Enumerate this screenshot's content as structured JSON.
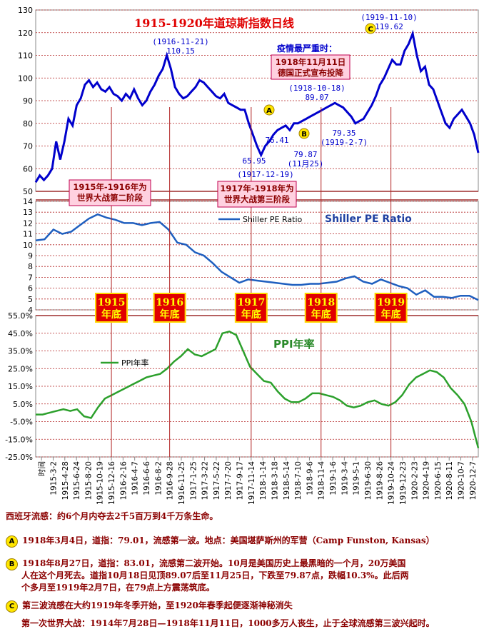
{
  "chart_data": {
    "type": "line",
    "title": "1915-1920年道琼斯指数日线",
    "x_tick_labels": [
      "时间",
      "1915-3-2",
      "1915-4-28",
      "1915-6-24",
      "1915-8-20",
      "1915-10-19",
      "1915-12-16",
      "1916-2-16",
      "1916-4-7",
      "1916-6-6",
      "1916-8-2",
      "1916-9-28",
      "1916-11-25",
      "1917-1-25",
      "1917-3-22",
      "1917-5-22",
      "1917-7-20",
      "1917-9-17",
      "1917-11-14",
      "1918-1-14",
      "1918-3-18",
      "1918-5-14",
      "1918-7-10",
      "1918-9-6",
      "1918-11-4",
      "1919-1-6",
      "1919-3-4",
      "1919-5-1",
      "1919-6-30",
      "1919-8-26",
      "1919-10-24",
      "1919-12-23",
      "1920-2-23",
      "1920-4-19",
      "1920-6-15",
      "1920-8-11",
      "1920-10-7",
      "1920-12-7"
    ],
    "panels": [
      {
        "name": "djia",
        "ylim": [
          50,
          130
        ],
        "y_ticks": [
          "50",
          "60",
          "70",
          "80",
          "90",
          "100",
          "110",
          "120",
          "130"
        ],
        "series": [
          {
            "color": "#0000cc",
            "values": [
              54,
              57,
              55,
              57,
              60,
              72,
              64,
              72,
              82,
              79,
              88,
              91,
              97,
              99,
              96,
              98,
              95,
              94,
              96,
              93,
              92,
              90,
              93,
              91,
              95,
              91,
              88,
              90,
              94,
              97,
              101,
              104,
              110,
              104,
              96,
              93,
              91,
              92,
              94,
              96,
              99,
              98,
              96,
              94,
              92,
              91,
              93,
              89,
              88,
              87,
              86,
              86,
              80,
              75,
              70,
              66,
              70,
              72,
              75,
              77,
              78,
              79,
              77,
              80,
              80,
              81,
              82,
              83,
              84,
              85,
              86,
              87,
              88,
              89,
              88,
              87,
              85,
              83,
              80,
              81,
              82,
              85,
              88,
              92,
              97,
              100,
              104,
              108,
              106,
              106,
              112,
              115,
              119.6,
              110,
              103,
              105,
              97,
              95,
              90,
              85,
              80,
              78,
              82,
              84,
              86,
              83,
              80,
              75,
              67
            ]
          }
        ]
      },
      {
        "name": "pe",
        "ylim": [
          4,
          14
        ],
        "y_ticks": [
          "4",
          "5",
          "6",
          "7",
          "8",
          "9",
          "10",
          "11",
          "12",
          "13",
          "14"
        ],
        "series": [
          {
            "name": "Shiller PE Ratio",
            "color": "#1f5fbf",
            "values": [
              10.4,
              10.5,
              11.4,
              11.0,
              11.2,
              11.8,
              12.4,
              12.8,
              12.5,
              12.3,
              12.0,
              12.0,
              11.8,
              12.0,
              12.1,
              11.4,
              10.2,
              10.0,
              9.3,
              9.0,
              8.3,
              7.5,
              7.0,
              6.5,
              6.8,
              6.7,
              6.6,
              6.5,
              6.4,
              6.3,
              6.3,
              6.4,
              6.4,
              6.5,
              6.6,
              6.9,
              7.1,
              6.6,
              6.4,
              6.8,
              6.5,
              6.2,
              6.0,
              5.4,
              5.8,
              5.2,
              5.2,
              5.1,
              5.3,
              5.3,
              4.9
            ]
          }
        ]
      },
      {
        "name": "ppi",
        "ylim": [
          -25,
          55
        ],
        "y_ticks": [
          "-25.0%",
          "-15.0%",
          "-5.0%",
          "5.0%",
          "15.0%",
          "25.0%",
          "35.0%",
          "45.0%",
          "55.0%"
        ],
        "series": [
          {
            "name": "PPI年率",
            "color": "#2ca02c",
            "values": [
              -1,
              -1,
              0,
              1,
              2,
              1,
              2,
              -2,
              -3,
              3,
              8,
              10,
              12,
              14,
              16,
              18,
              20,
              21,
              22,
              25,
              29,
              32,
              36,
              33,
              32,
              34,
              36,
              45,
              46,
              44,
              35,
              26,
              22,
              18,
              17,
              12,
              8,
              6,
              6,
              8,
              11,
              11,
              10,
              9,
              7,
              4,
              3,
              4,
              6,
              7,
              5,
              4,
              6,
              10,
              16,
              20,
              22,
              24,
              23,
              20,
              14,
              10,
              5,
              -5,
              -20
            ]
          }
        ]
      }
    ],
    "year_end_lines": [
      {
        "year_label": "1915\n年底",
        "x_index": 6
      },
      {
        "year_label": "1916\n年底",
        "x_index": 11
      },
      {
        "year_label": "1917\n年底",
        "x_index": 18
      },
      {
        "year_label": "1918\n年底",
        "x_index": 24
      },
      {
        "year_label": "1919\n年底",
        "x_index": 30
      }
    ],
    "annotations": {
      "peak_1916": "(1916-11-21)\n110.15",
      "peak_1919": "(1919-11-10)\n119.62",
      "low_1917": "65.95",
      "low_1917_date": "(1917-12-19)",
      "a_value": "76.41",
      "peak_1918": "(1918-10-18)\n89.07",
      "b_low": "79.35\n(1919-2-7)",
      "b_low2": "79.87\n(11月25)",
      "pandemic_title": "疫情最严重时：",
      "armistice": "1918年11月11日\n德国正式宣布投降",
      "phase2": "1915年-1916年为\n世界大战第二阶段",
      "phase3": "1917年-1918年为\n世界大战第三阶段",
      "pe_label": "Shiller PE Ratio",
      "ppi_label": "PPI年率"
    }
  },
  "notes": {
    "intro": "西班牙流感：约6个月内夺去2千5百万到4千万条生命。",
    "a": "1918年3月4日，道指：79.01，流感第一波。地点：美国堪萨斯州的军营（Camp Funston, Kansas）",
    "b1": "1918年8月27日，道指：83.01，流感第二波开始。10月是美国历史上最黑暗的一个月，20万美国",
    "b2": "人在这个月死去。道指10月18日见顶89.07后至11月25日，下跌至79.87点，跌幅10.3%。此后两",
    "b3": "个多月至1919年2月7日，在79点上方震荡筑底。",
    "c": "第三波流感在大约1919年冬季开始，至1920年春季起便逐渐神秘消失",
    "ww1": "第一次世界大战：1914年7月28日—1918年11月11日，1000多万人丧生，止于全球流感第三波兴起时。",
    "badge_a": "A",
    "badge_b": "B",
    "badge_c": "C"
  }
}
